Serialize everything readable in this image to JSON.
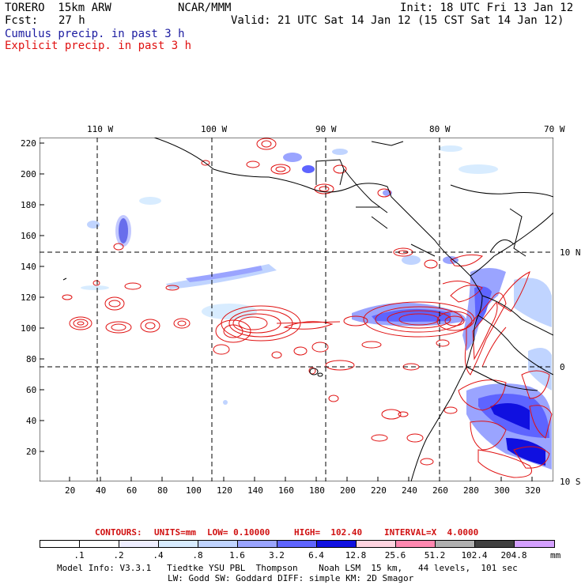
{
  "header": {
    "model": "TORERO  15km ARW",
    "org": "NCAR/MMM",
    "init": "Init: 18 UTC Fri 13 Jan 12",
    "fcst_label": "Fcst:",
    "fcst_value": "27 h",
    "valid": "Valid: 21 UTC Sat 14 Jan 12 (15 CST Sat 14 Jan 12)"
  },
  "legend_titles": {
    "cumulus": "Cumulus precip. in past 3 h",
    "explicit": "Explicit precip. in past 3 h"
  },
  "colors": {
    "cumulus_text": "#1a1aa0",
    "explicit_text": "#e01010",
    "contour": "#e01010",
    "coast": "#000000"
  },
  "map": {
    "lon_labels": [
      "110 W",
      "100 W",
      "90 W",
      "80 W",
      "70 W"
    ],
    "lat_labels": [
      "10 N",
      "0",
      "10 S"
    ],
    "y_ticks": [
      "220",
      "200",
      "180",
      "160",
      "140",
      "120",
      "100",
      "80",
      "60",
      "40",
      "20"
    ],
    "x_ticks": [
      "20",
      "40",
      "60",
      "80",
      "100",
      "120",
      "140",
      "160",
      "180",
      "200",
      "220",
      "240",
      "260",
      "280",
      "300",
      "320"
    ]
  },
  "contours_line": {
    "label": "CONTOURS:",
    "units": "UNITS=mm",
    "low": "LOW= 0.10000",
    "high": "HIGH=  102.40",
    "interval": "INTERVAL=X  4.0000"
  },
  "colorbar": {
    "unit": "mm",
    "labels": [
      ".1",
      ".2",
      ".4",
      ".8",
      "1.6",
      "3.2",
      "6.4",
      "12.8",
      "25.6",
      "51.2",
      "102.4",
      "204.8"
    ],
    "colors": [
      "#ffffff",
      "#ffffff",
      "#eeeeff",
      "#d8ecff",
      "#c0d4ff",
      "#9aa4ff",
      "#5e64ff",
      "#1010e0",
      "#ffd4e0",
      "#ff88b0",
      "#b0b0b0",
      "#404040",
      "#d4a0ff"
    ]
  },
  "footer": {
    "line1": "Model Info: V3.3.1   Tiedtke YSU PBL  Thompson    Noah LSM  15 km,   44 levels,  101 sec",
    "line2": "LW: Godd SW: Goddard DIFF: simple KM: 2D Smagor"
  }
}
